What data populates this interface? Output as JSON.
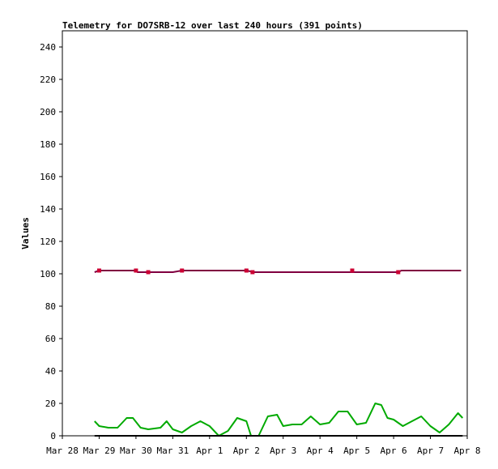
{
  "chart_data": {
    "type": "line",
    "title": "Telemetry for DO7SRB-12 over last 240 hours (391 points)",
    "xlabel": "",
    "ylabel": "Values",
    "xlim": [
      "Mar 28",
      "Apr 8"
    ],
    "ylim": [
      0,
      250
    ],
    "x_tick_labels": [
      "Mar 28",
      "Mar 29",
      "Mar 30",
      "Mar 31",
      "Apr 1",
      "Apr 2",
      "Apr 3",
      "Apr 4",
      "Apr 5",
      "Apr 6",
      "Apr 7",
      "Apr 8"
    ],
    "y_ticks": [
      0,
      20,
      40,
      60,
      80,
      100,
      120,
      140,
      160,
      180,
      200,
      220,
      240
    ],
    "grid": false,
    "legend": "none",
    "series": [
      {
        "color": "#800040",
        "marker_color": "#cc0033",
        "points": [
          [
            "Mar 28 21:00",
            101
          ],
          [
            "Mar 29 00:00",
            102
          ],
          [
            "Mar 29 12:00",
            102
          ],
          [
            "Mar 30 00:00",
            102
          ],
          [
            "Mar 30 01:00",
            101
          ],
          [
            "Mar 30 06:00",
            101
          ],
          [
            "Mar 30 12:00",
            101
          ],
          [
            "Mar 31 00:00",
            101
          ],
          [
            "Mar 31 06:00",
            102
          ],
          [
            "Apr 1 00:00",
            102
          ],
          [
            "Apr 1 12:00",
            102
          ],
          [
            "Apr 2 00:00",
            102
          ],
          [
            "Apr 2 05:00",
            101
          ],
          [
            "Apr 3 00:00",
            101
          ],
          [
            "Apr 4 00:00",
            101
          ],
          [
            "Apr 4 20:00",
            101
          ],
          [
            "Apr 5 12:00",
            101
          ],
          [
            "Apr 6 03:00",
            101
          ],
          [
            "Apr 6 05:00",
            102
          ],
          [
            "Apr 7 00:00",
            102
          ],
          [
            "Apr 7 20:00",
            102
          ]
        ],
        "markers": [
          [
            "Mar 29 00:00",
            102
          ],
          [
            "Mar 30 00:00",
            102
          ],
          [
            "Mar 30 08:00",
            101
          ],
          [
            "Mar 31 06:00",
            102
          ],
          [
            "Apr 2 00:00",
            102
          ],
          [
            "Apr 2 04:00",
            101
          ],
          [
            "Apr 4 21:00",
            102
          ],
          [
            "Apr 6 03:00",
            101
          ]
        ]
      },
      {
        "color": "#00aa00",
        "points": [
          [
            "Mar 28 21:00",
            9
          ],
          [
            "Mar 29 00:00",
            6
          ],
          [
            "Mar 29 06:00",
            5
          ],
          [
            "Mar 29 12:00",
            5
          ],
          [
            "Mar 29 18:00",
            11
          ],
          [
            "Mar 29 22:00",
            11
          ],
          [
            "Mar 30 03:00",
            5
          ],
          [
            "Mar 30 08:00",
            4
          ],
          [
            "Mar 30 16:00",
            5
          ],
          [
            "Mar 30 20:00",
            9
          ],
          [
            "Mar 31 00:00",
            4
          ],
          [
            "Mar 31 06:00",
            2
          ],
          [
            "Mar 31 12:00",
            6
          ],
          [
            "Mar 31 18:00",
            9
          ],
          [
            "Apr 1 00:00",
            6
          ],
          [
            "Apr 1 06:00",
            0
          ],
          [
            "Apr 1 12:00",
            3
          ],
          [
            "Apr 1 18:00",
            11
          ],
          [
            "Apr 2 00:00",
            9
          ],
          [
            "Apr 2 03:00",
            0
          ],
          [
            "Apr 2 08:00",
            0
          ],
          [
            "Apr 2 14:00",
            12
          ],
          [
            "Apr 2 20:00",
            13
          ],
          [
            "Apr 3 00:00",
            6
          ],
          [
            "Apr 3 06:00",
            7
          ],
          [
            "Apr 3 12:00",
            7
          ],
          [
            "Apr 3 18:00",
            12
          ],
          [
            "Apr 4 00:00",
            7
          ],
          [
            "Apr 4 06:00",
            8
          ],
          [
            "Apr 4 12:00",
            15
          ],
          [
            "Apr 4 18:00",
            15
          ],
          [
            "Apr 5 00:00",
            7
          ],
          [
            "Apr 5 06:00",
            8
          ],
          [
            "Apr 5 12:00",
            20
          ],
          [
            "Apr 5 16:00",
            19
          ],
          [
            "Apr 5 20:00",
            11
          ],
          [
            "Apr 6 00:00",
            10
          ],
          [
            "Apr 6 06:00",
            6
          ],
          [
            "Apr 6 12:00",
            9
          ],
          [
            "Apr 6 18:00",
            12
          ],
          [
            "Apr 7 00:00",
            6
          ],
          [
            "Apr 7 06:00",
            2
          ],
          [
            "Apr 7 12:00",
            7
          ],
          [
            "Apr 7 18:00",
            14
          ],
          [
            "Apr 7 21:00",
            11
          ]
        ]
      },
      {
        "color": "#000000",
        "points": [
          [
            "Mar 28 21:00",
            0
          ],
          [
            "Apr 7 21:00",
            0
          ]
        ]
      }
    ]
  }
}
